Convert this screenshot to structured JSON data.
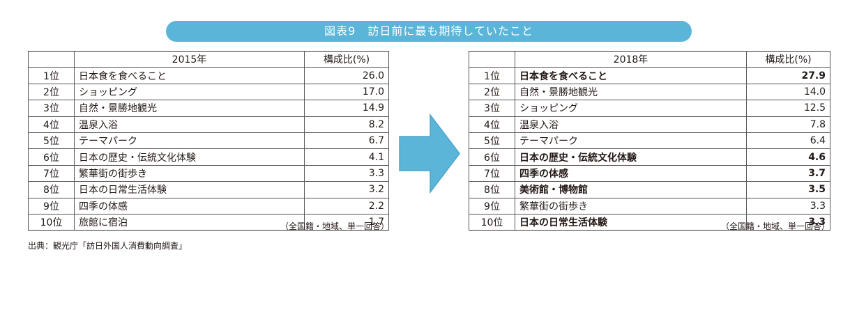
{
  "title": "図表9　訪日前に最も期待していたこと",
  "left": {
    "year_header": "2015年",
    "ratio_header": "構成比(%)",
    "rows": [
      {
        "rank": "1位",
        "item": "日本食を食べること",
        "value": "26.0"
      },
      {
        "rank": "2位",
        "item": "ショッピング",
        "value": "17.0"
      },
      {
        "rank": "3位",
        "item": "自然・景勝地観光",
        "value": "14.9"
      },
      {
        "rank": "4位",
        "item": "温泉入浴",
        "value": "8.2"
      },
      {
        "rank": "5位",
        "item": "テーマパーク",
        "value": "6.7"
      },
      {
        "rank": "6位",
        "item": "日本の歴史・伝統文化体験",
        "value": "4.1"
      },
      {
        "rank": "7位",
        "item": "繁華街の街歩き",
        "value": "3.3"
      },
      {
        "rank": "8位",
        "item": "日本の日常生活体験",
        "value": "3.2"
      },
      {
        "rank": "9位",
        "item": "四季の体感",
        "value": "2.2"
      },
      {
        "rank": "10位",
        "item": "旅館に宿泊",
        "value": "1.7"
      }
    ],
    "note": "（全国籍・地域、単一回答）"
  },
  "right": {
    "year_header": "2018年",
    "ratio_header": "構成比(%)",
    "rows": [
      {
        "rank": "1位",
        "item": "日本食を食べること",
        "value": "27.9"
      },
      {
        "rank": "2位",
        "item": "自然・景勝地観光",
        "value": "14.0"
      },
      {
        "rank": "3位",
        "item": "ショッピング",
        "value": "12.5"
      },
      {
        "rank": "4位",
        "item": "温泉入浴",
        "value": "7.8"
      },
      {
        "rank": "5位",
        "item": "テーマパーク",
        "value": "6.4"
      },
      {
        "rank": "6位",
        "item": "日本の歴史・伝統文化体験",
        "value": "4.6"
      },
      {
        "rank": "7位",
        "item": "四季の体感",
        "value": "3.7"
      },
      {
        "rank": "8位",
        "item": "美術館・博物館",
        "value": "3.5"
      },
      {
        "rank": "9位",
        "item": "繁華街の街歩き",
        "value": "3.3"
      },
      {
        "rank": "10位",
        "item": "日本の日常生活体験",
        "value": "3.3"
      }
    ],
    "note": "（全国籍・地域、単一回答）"
  },
  "source": "出典：観光庁「訪日外国人消費動向調査」",
  "colors": {
    "banner": "#5ab5d8",
    "arrow_fill": "#5ab5d8",
    "text": "#231815"
  },
  "icons": {
    "arrow": "right-arrow-icon"
  }
}
